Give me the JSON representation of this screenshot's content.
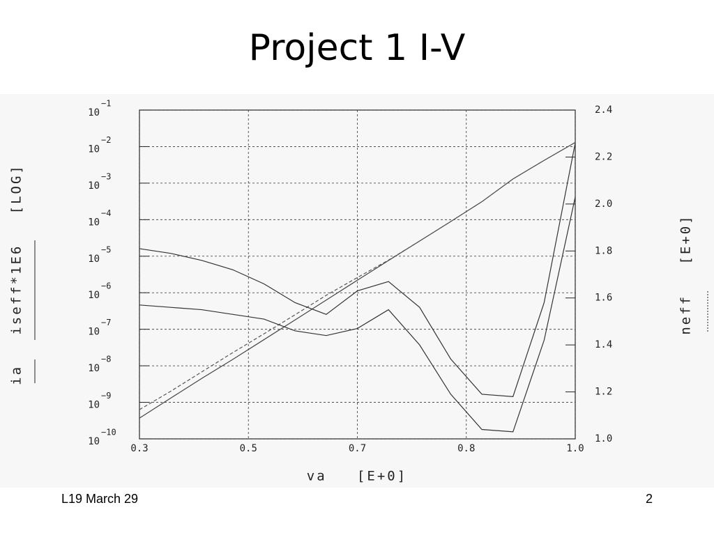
{
  "slide_title": "Project 1 I-V",
  "footer_left": "L19 March 29",
  "page_number": "2",
  "chart_data": {
    "type": "line",
    "xlabel": "va   [E+0]",
    "ylabel": "ia   iseff*1E6   [LOG]",
    "y2label": "neff   [E+0]",
    "x": [
      0.3,
      0.35,
      0.4,
      0.45,
      0.5,
      0.55,
      0.6,
      0.65,
      0.7,
      0.75,
      0.8,
      0.85,
      0.9,
      0.95,
      1.0
    ],
    "xlim": [
      0.3,
      1.0
    ],
    "xticks": [
      0.3,
      {
        "value": 0.475,
        "label": "0.5"
      },
      {
        "value": 0.65,
        "label": "0.7"
      },
      {
        "value": 0.825,
        "label": "0.8"
      },
      {
        "value": 1.0,
        "label": "1.0"
      }
    ],
    "ylog": true,
    "ylim": [
      1e-10,
      0.1
    ],
    "yticks": [
      {
        "value": 0.1,
        "label": "10",
        "exponent": "−1"
      },
      {
        "value": 0.01,
        "label": "10",
        "exponent": "−2"
      },
      {
        "value": 0.001,
        "label": "10",
        "exponent": "−3"
      },
      {
        "value": 0.0001,
        "label": "10",
        "exponent": "−4"
      },
      {
        "value": 1e-05,
        "label": "10",
        "exponent": "−5"
      },
      {
        "value": 1e-06,
        "label": "10",
        "exponent": "−6"
      },
      {
        "value": 1e-07,
        "label": "10",
        "exponent": "−7"
      },
      {
        "value": 1e-08,
        "label": "10",
        "exponent": "−8"
      },
      {
        "value": 1e-09,
        "label": "10",
        "exponent": "−9"
      },
      {
        "value": 1e-10,
        "label": "10",
        "exponent": "−10"
      }
    ],
    "y2lim": [
      1.0,
      2.4
    ],
    "y2ticks": [
      {
        "value": 1.0,
        "label": "1.0"
      },
      1.2,
      1.4,
      1.6,
      1.8,
      {
        "value": 2.0,
        "label": "2.0"
      },
      2.2,
      2.4
    ],
    "grid": true,
    "series": [
      {
        "color": "#444444",
        "style": "solid",
        "values": [
          3.7e-10,
          1.3e-09,
          4.5e-09,
          1.5e-08,
          5.2e-08,
          1.8e-07,
          6.3e-07,
          2.2e-06,
          7.6e-06,
          2.6e-05,
          8.9e-05,
          0.00031,
          0.0013,
          0.0042,
          0.013
        ]
      },
      {
        "color": "#555555",
        "style": "dashed",
        "values": [
          6.3e-10,
          2e-09,
          6.8e-09,
          2.3e-08,
          7.5e-08,
          2.5e-07,
          8.5e-07,
          2.6e-06,
          7.8e-06,
          2.6e-05,
          8.9e-05,
          0.00031,
          0.0013,
          0.0042,
          0.013
        ]
      },
      {
        "color": "#333333",
        "style": "solid",
        "axis": "y2",
        "values": [
          1.81,
          1.79,
          1.76,
          1.72,
          1.66,
          1.58,
          1.53,
          1.63,
          1.67,
          1.56,
          1.34,
          1.19,
          1.18,
          1.58,
          2.26
        ]
      },
      {
        "color": "#333333",
        "style": "solid",
        "axis": "y2",
        "values": [
          1.57,
          1.56,
          1.55,
          1.53,
          1.51,
          1.46,
          1.44,
          1.47,
          1.55,
          1.4,
          1.19,
          1.04,
          1.03,
          1.42,
          2.03
        ]
      }
    ]
  }
}
